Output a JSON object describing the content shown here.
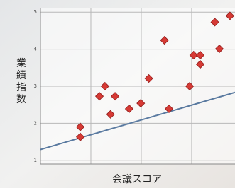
{
  "chart_data": {
    "type": "scatter",
    "x_label": "会議スコア",
    "y_label": "業績指数",
    "x": [
      0.79,
      0.79,
      1.17,
      1.28,
      1.39,
      1.48,
      1.76,
      1.99,
      2.15,
      2.46,
      2.55,
      2.96,
      3.04,
      3.17,
      3.17,
      3.46,
      3.55,
      3.76
    ],
    "values": [
      1.9,
      1.63,
      2.73,
      3.0,
      2.24,
      2.73,
      2.39,
      2.54,
      3.21,
      4.24,
      2.39,
      3.0,
      3.84,
      3.84,
      3.59,
      4.73,
      4.01,
      4.9
    ],
    "color": "#d63a35",
    "xlim": [
      0,
      3.86
    ],
    "ylim": [
      0.9,
      5.1
    ],
    "xticks": [
      0,
      1,
      2,
      3
    ],
    "show_xtick_labels": false,
    "yticks": [
      1,
      2,
      3,
      4,
      5
    ],
    "grid": true,
    "trendline": {
      "intercept": 1.29,
      "slope": 0.4,
      "color": "#5a7aa0"
    }
  }
}
